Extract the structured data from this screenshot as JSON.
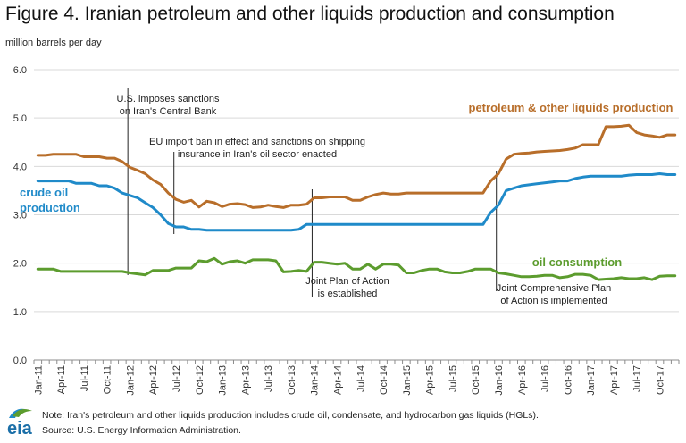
{
  "header": {
    "title": "Figure 4. Iranian petroleum and other liquids production and consumption",
    "units": "million barrels per day"
  },
  "footer": {
    "note": "Note: Iran's petroleum and other liquids production includes crude oil, condensate, and hydrocarbon gas liquids (HGLs).",
    "source": "Source: U.S. Energy Information Administration.",
    "logo_text": "eia"
  },
  "chart_data": {
    "type": "line",
    "title": "Figure 4. Iranian petroleum and other liquids production and consumption",
    "ylabel": "million barrels per day",
    "xlabel": "",
    "ylim": [
      0,
      6
    ],
    "yticks": [
      "0.0",
      "1.0",
      "2.0",
      "3.0",
      "4.0",
      "5.0",
      "6.0"
    ],
    "grid": true,
    "x_start": "Jan-11",
    "x_tick_labels": [
      "Jan-11",
      "Apr-11",
      "Jul-11",
      "Oct-11",
      "Jan-12",
      "Apr-12",
      "Jul-12",
      "Oct-12",
      "Jan-13",
      "Apr-13",
      "Jul-13",
      "Oct-13",
      "Jan-14",
      "Apr-14",
      "Jul-14",
      "Oct-14",
      "Jan-15",
      "Apr-15",
      "Jul-15",
      "Oct-15",
      "Jan-16",
      "Apr-16",
      "Jul-16",
      "Oct-16",
      "Jan-17",
      "Apr-17",
      "Jul-17",
      "Oct-17"
    ],
    "series": [
      {
        "name": "petroleum & other liquids production",
        "color": "#b86e2a",
        "values": [
          4.23,
          4.23,
          4.25,
          4.25,
          4.25,
          4.25,
          4.2,
          4.2,
          4.2,
          4.17,
          4.17,
          4.1,
          3.98,
          3.92,
          3.85,
          3.72,
          3.63,
          3.45,
          3.32,
          3.26,
          3.3,
          3.16,
          3.28,
          3.25,
          3.17,
          3.22,
          3.23,
          3.21,
          3.15,
          3.16,
          3.2,
          3.17,
          3.15,
          3.2,
          3.2,
          3.22,
          3.35,
          3.35,
          3.37,
          3.37,
          3.37,
          3.3,
          3.3,
          3.37,
          3.42,
          3.45,
          3.43,
          3.43,
          3.45,
          3.45,
          3.45,
          3.45,
          3.45,
          3.45,
          3.45,
          3.45,
          3.45,
          3.45,
          3.45,
          3.7,
          3.85,
          4.15,
          4.25,
          4.27,
          4.28,
          4.3,
          4.31,
          4.32,
          4.33,
          4.35,
          4.38,
          4.45,
          4.45,
          4.45,
          4.82,
          4.82,
          4.83,
          4.85,
          4.7,
          4.65,
          4.63,
          4.6,
          4.65,
          4.65
        ]
      },
      {
        "name": "crude oil production",
        "color": "#1f8ac9",
        "values": [
          3.7,
          3.7,
          3.7,
          3.7,
          3.7,
          3.65,
          3.65,
          3.65,
          3.6,
          3.6,
          3.55,
          3.45,
          3.4,
          3.35,
          3.25,
          3.15,
          3.0,
          2.82,
          2.75,
          2.75,
          2.7,
          2.7,
          2.68,
          2.68,
          2.68,
          2.68,
          2.68,
          2.68,
          2.68,
          2.68,
          2.68,
          2.68,
          2.68,
          2.68,
          2.7,
          2.8,
          2.8,
          2.8,
          2.8,
          2.8,
          2.8,
          2.8,
          2.8,
          2.8,
          2.8,
          2.8,
          2.8,
          2.8,
          2.8,
          2.8,
          2.8,
          2.8,
          2.8,
          2.8,
          2.8,
          2.8,
          2.8,
          2.8,
          2.8,
          3.05,
          3.2,
          3.5,
          3.55,
          3.6,
          3.62,
          3.64,
          3.66,
          3.68,
          3.7,
          3.7,
          3.75,
          3.78,
          3.8,
          3.8,
          3.8,
          3.8,
          3.8,
          3.82,
          3.83,
          3.83,
          3.83,
          3.85,
          3.83,
          3.83
        ]
      },
      {
        "name": "oil consumption",
        "color": "#5c9c2e",
        "values": [
          1.88,
          1.88,
          1.88,
          1.83,
          1.83,
          1.83,
          1.83,
          1.83,
          1.83,
          1.83,
          1.83,
          1.83,
          1.8,
          1.78,
          1.76,
          1.85,
          1.85,
          1.85,
          1.9,
          1.9,
          1.9,
          2.05,
          2.03,
          2.1,
          1.98,
          2.03,
          2.05,
          2.0,
          2.07,
          2.07,
          2.07,
          2.05,
          1.82,
          1.83,
          1.85,
          1.83,
          2.02,
          2.02,
          2.0,
          1.98,
          2.0,
          1.88,
          1.88,
          1.98,
          1.88,
          1.98,
          1.98,
          1.96,
          1.8,
          1.8,
          1.85,
          1.88,
          1.88,
          1.82,
          1.8,
          1.8,
          1.83,
          1.88,
          1.88,
          1.88,
          1.8,
          1.78,
          1.75,
          1.72,
          1.72,
          1.73,
          1.75,
          1.75,
          1.7,
          1.72,
          1.77,
          1.77,
          1.75,
          1.66,
          1.67,
          1.68,
          1.7,
          1.68,
          1.68,
          1.7,
          1.66,
          1.73,
          1.74,
          1.74
        ]
      }
    ],
    "series_labels": [
      {
        "text": "petroleum & other liquids production",
        "color": "#b86e2a"
      },
      {
        "text": "crude oil",
        "color": "#1f8ac9"
      },
      {
        "text": "production",
        "color": "#1f8ac9"
      },
      {
        "text": "oil consumption",
        "color": "#5c9c2e"
      }
    ],
    "annotations": [
      {
        "lines": [
          "U.S. imposes sanctions",
          "on Iran's Central Bank"
        ],
        "month": 12
      },
      {
        "lines": [
          "EU import ban in effect and sanctions on shipping",
          "insurance in Iran's oil sector enacted"
        ],
        "month": 18
      },
      {
        "lines": [
          "Joint Plan of Action",
          "is established"
        ],
        "month": 36
      },
      {
        "lines": [
          "Joint Comprehensive Plan",
          "of Action is implemented"
        ],
        "month": 60
      }
    ]
  }
}
